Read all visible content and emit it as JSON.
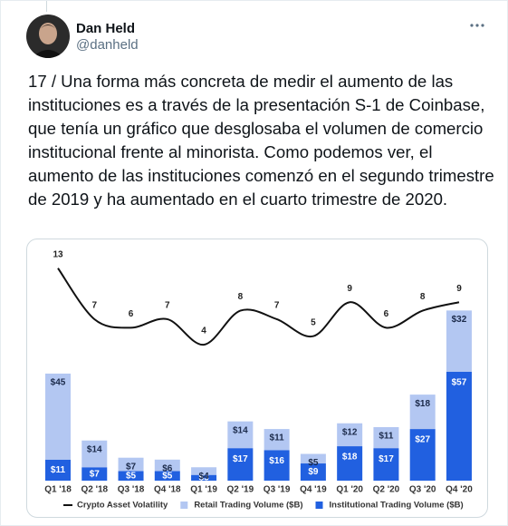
{
  "tweet": {
    "name": "Dan Held",
    "handle": "@danheld",
    "text": "17 / Una forma más concreta de medir el aumento de las instituciones es a través de la presentación S-1 de Coinbase, que tenía un gráfico que desglosaba el volumen de comercio institucional frente al minorista. Como podemos ver, el aumento de las instituciones comenzó en el segundo trimestre de 2019 y ha aumentado en el cuarto trimestre de 2020."
  },
  "chart_data": {
    "type": "bar",
    "stacked": true,
    "categories": [
      "Q1 '18",
      "Q2 '18",
      "Q3 '18",
      "Q4 '18",
      "Q1 '19",
      "Q2 '19",
      "Q3 '19",
      "Q4 '19",
      "Q1 '20",
      "Q2 '20",
      "Q3 '20",
      "Q4 '20"
    ],
    "ylim": [
      0,
      120
    ],
    "y2lim": [
      -12,
      15
    ],
    "series": [
      {
        "name": "Institutional Trading Volume ($B)",
        "color": "#2160e0",
        "values": [
          11,
          7,
          5,
          5,
          3,
          17,
          16,
          9,
          18,
          17,
          27,
          57
        ],
        "value_labels": [
          "$11",
          "$7",
          "$5",
          "$5",
          "$3",
          "$17",
          "$16",
          "$9",
          "$18",
          "$17",
          "$27",
          "$57"
        ]
      },
      {
        "name": "Retail Trading Volume ($B)",
        "color": "#b3c7f2",
        "values": [
          45,
          14,
          7,
          6,
          4,
          14,
          11,
          5,
          12,
          11,
          18,
          32
        ],
        "value_labels": [
          "$45",
          "$14",
          "$7",
          "$6",
          "$4",
          "$14",
          "$11",
          "$5",
          "$12",
          "$11",
          "$18",
          "$32"
        ]
      },
      {
        "name": "Crypto Asset Volatility",
        "type": "line",
        "axis": "y2",
        "color": "#111111",
        "values": [
          13,
          7,
          6,
          7,
          4,
          8,
          7,
          5,
          9,
          6,
          8,
          9
        ]
      }
    ]
  }
}
